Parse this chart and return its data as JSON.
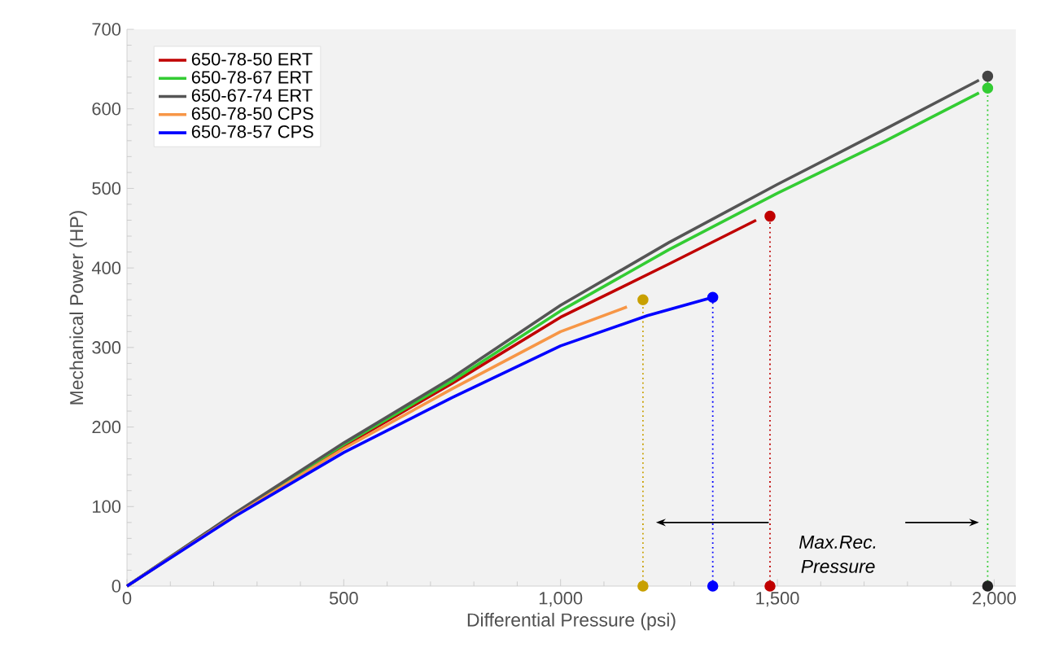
{
  "chart_data": {
    "type": "line",
    "xlabel": "Differential Pressure (psi)",
    "ylabel": "Mechanical Power (HP)",
    "xlim": [
      0,
      2050
    ],
    "ylim": [
      0,
      700
    ],
    "xticks": [
      0,
      500,
      {
        "value": 1000,
        "label": "1,000"
      },
      {
        "value": 1500,
        "label": "1,500"
      },
      {
        "value": 2000,
        "label": "2,000"
      }
    ],
    "yticks": [
      0,
      100,
      200,
      300,
      400,
      500,
      600,
      700
    ],
    "legend": "top left",
    "line_style": "solid",
    "series": [
      {
        "name": "650-78-50 ERT",
        "color": "#c00000",
        "x": [
          0,
          250,
          500,
          750,
          1000,
          1250,
          1451
        ],
        "values": [
          0,
          90,
          176,
          255,
          338,
          405,
          460
        ]
      },
      {
        "name": "650-78-67 ERT",
        "color": "#33cc33",
        "x": [
          0,
          250,
          500,
          750,
          1000,
          1250,
          1500,
          1750,
          1965
        ],
        "values": [
          0,
          91,
          178,
          258,
          346,
          423,
          494,
          560,
          620
        ]
      },
      {
        "name": "650-67-74 ERT",
        "color": "#555555",
        "x": [
          0,
          250,
          500,
          750,
          1000,
          1250,
          1500,
          1750,
          1965
        ],
        "values": [
          0,
          92,
          180,
          262,
          353,
          432,
          505,
          575,
          636
        ]
      },
      {
        "name": "650-78-50 CPS",
        "color": "#f79646",
        "x": [
          0,
          250,
          500,
          750,
          1000,
          1153
        ],
        "values": [
          0,
          89,
          173,
          248,
          320,
          351
        ]
      },
      {
        "name": "650-78-57 CPS",
        "color": "#0000ff",
        "x": [
          0,
          250,
          500,
          750,
          1000,
          1200,
          1351
        ],
        "values": [
          0,
          88,
          168,
          237,
          302,
          340,
          363
        ]
      },
      {
        "type": "scatter",
        "marker": "circle",
        "x": [
          1190,
          1351,
          1483,
          1985,
          1985,
          1190,
          1351,
          1483,
          1985
        ],
        "values": [
          360,
          363,
          465,
          641,
          626,
          0,
          0,
          0,
          0
        ],
        "colors": [
          "#c8a000",
          "#0000ff",
          "#c00000",
          "#444444",
          "#33cc33",
          "#c8a000",
          "#0000ff",
          "#c00000",
          "#222222"
        ]
      }
    ],
    "ref_lines": [
      {
        "axis": "x",
        "value": 1190,
        "color": "#c8a000",
        "line_style": "dotted"
      },
      {
        "axis": "x",
        "value": 1351,
        "color": "#0000ff",
        "line_style": "dotted"
      },
      {
        "axis": "x",
        "value": 1483,
        "color": "#c00000",
        "line_style": "dotted"
      },
      {
        "axis": "x",
        "value": 1985,
        "color": "#33cc33",
        "line_style": "dotted"
      }
    ],
    "annotations": [
      "Max.Rec. Pressure"
    ]
  }
}
